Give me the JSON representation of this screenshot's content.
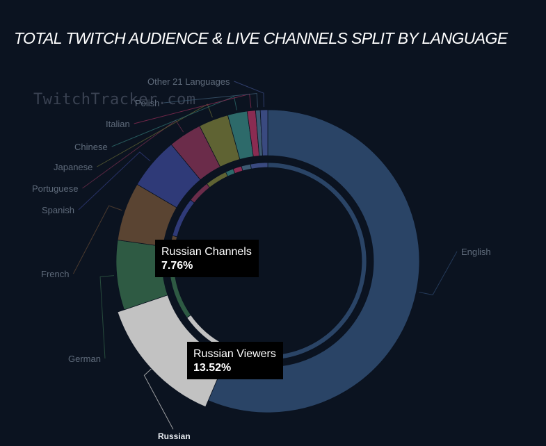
{
  "title": "TOTAL TWITCH AUDIENCE & LIVE CHANNELS SPLIT BY LANGUAGE",
  "watermark": "TwitchTracker.com",
  "tooltips": {
    "channels": {
      "label": "Russian Channels",
      "value": "7.76%"
    },
    "viewers": {
      "label": "Russian Viewers",
      "value": "13.52%"
    }
  },
  "colors": {
    "background": "#0b1320",
    "English": "#2a4466",
    "Russian": "#c2c2c2",
    "German": "#2e5a43",
    "French": "#5a4432",
    "Spanish": "#2f3a78",
    "Portuguese": "#6b2c4a",
    "Japanese": "#5f6333",
    "Chinese": "#2d6a6a",
    "Italian": "#8a2c52",
    "Polish": "#3d5a72",
    "Other 21 Languages": "#3a4a80"
  },
  "chart_data": {
    "type": "pie",
    "title": "TOTAL TWITCH AUDIENCE & LIVE CHANNELS SPLIT BY LANGUAGE",
    "labels": [
      "English",
      "Russian",
      "German",
      "French",
      "Spanish",
      "Portuguese",
      "Japanese",
      "Chinese",
      "Italian",
      "Polish",
      "Other 21 Languages"
    ],
    "series": [
      {
        "name": "Viewers",
        "values": [
          57.0,
          13.52,
          7.5,
          6.3,
          5.6,
          3.6,
          3.2,
          2.1,
          0.9,
          0.5,
          0.8
        ]
      },
      {
        "name": "Channels",
        "values": [
          57.5,
          7.76,
          8.0,
          5.9,
          6.5,
          3.7,
          3.6,
          1.3,
          1.4,
          1.5,
          2.8
        ]
      }
    ],
    "highlighted": "Russian"
  }
}
